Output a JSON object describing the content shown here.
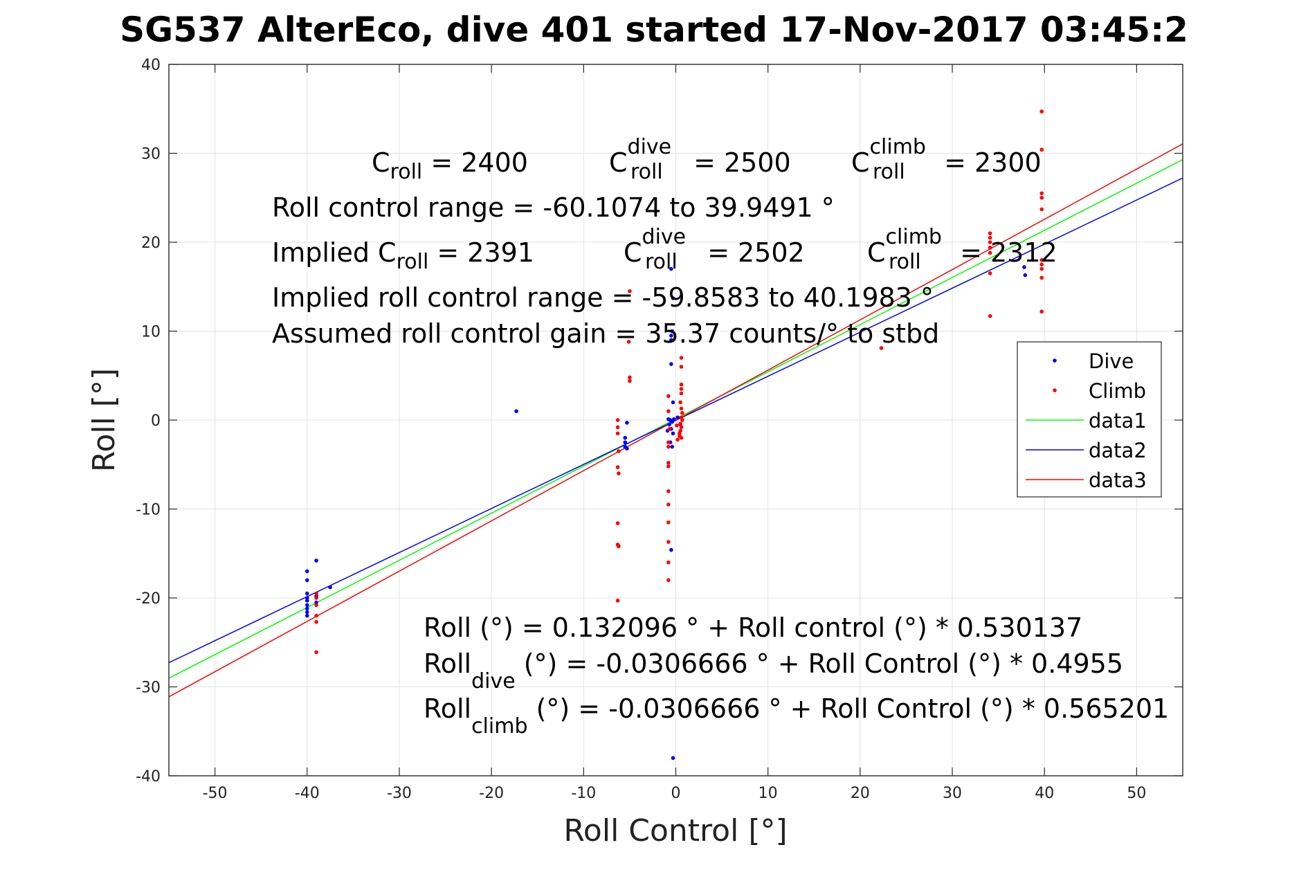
{
  "chart_data": {
    "type": "scatter",
    "title": "SG537 AlterEco, dive 401 started 17-Nov-2017 03:45:2",
    "xlabel": "Roll Control [°]",
    "ylabel": "Roll [°]",
    "xlim": [
      -55,
      55
    ],
    "ylim": [
      -40,
      40
    ],
    "xticks": [
      -50,
      -40,
      -30,
      -20,
      -10,
      0,
      10,
      20,
      30,
      40,
      50
    ],
    "yticks": [
      -40,
      -30,
      -20,
      -10,
      0,
      10,
      20,
      30,
      40
    ],
    "xtick_labels": [
      "-50",
      "-40",
      "-30",
      "-20",
      "-10",
      "0",
      "10",
      "20",
      "30",
      "40",
      "50"
    ],
    "ytick_labels": [
      "-40",
      "-30",
      "-20",
      "-10",
      "0",
      "10",
      "20",
      "30",
      "40"
    ],
    "grid": true,
    "legend_position": "right",
    "scatter_series": [
      {
        "name": "Dive",
        "color": "#0000ff",
        "points": [
          [
            -40,
            -17
          ],
          [
            -40,
            -18
          ],
          [
            -40,
            -19.5
          ],
          [
            -40,
            -20.3
          ],
          [
            -40,
            -20.8
          ],
          [
            -40,
            -21.2
          ],
          [
            -40,
            -21.6
          ],
          [
            -40,
            -22
          ],
          [
            -40,
            -20
          ],
          [
            -39,
            -15.8
          ],
          [
            -39,
            -19.8
          ],
          [
            -39,
            -20.5
          ],
          [
            -37.5,
            -18.8
          ],
          [
            -17.3,
            1
          ],
          [
            -5.3,
            -0.3
          ],
          [
            -5.5,
            -2
          ],
          [
            -5.5,
            -2.5
          ],
          [
            -5.5,
            -3
          ],
          [
            -5.3,
            -3.2
          ],
          [
            -0.5,
            17
          ],
          [
            -0.3,
            13.7
          ],
          [
            -0.4,
            10
          ],
          [
            -0.5,
            9.5
          ],
          [
            -0.5,
            9
          ],
          [
            -0.5,
            6.3
          ],
          [
            -0.3,
            2
          ],
          [
            -0.8,
            0.1
          ],
          [
            -0.6,
            0
          ],
          [
            -0.4,
            -0.2
          ],
          [
            -0.2,
            0.1
          ],
          [
            -0.7,
            -0.5
          ],
          [
            -0.5,
            -1
          ],
          [
            -0.9,
            -1.2
          ],
          [
            -0.3,
            -1.5
          ],
          [
            -0.6,
            -2.5
          ],
          [
            -0.4,
            -3
          ],
          [
            -0.5,
            -14.6
          ],
          [
            -0.3,
            -38
          ],
          [
            0.5,
            -0.5
          ],
          [
            0.2,
            0.3
          ],
          [
            37.8,
            17.2
          ],
          [
            37.9,
            16.3
          ]
        ]
      },
      {
        "name": "Climb",
        "color": "#ff0000",
        "points": [
          [
            -39,
            -19.5
          ],
          [
            -39,
            -20
          ],
          [
            -39,
            -20.8
          ],
          [
            -39,
            -22
          ],
          [
            -39,
            -22.7
          ],
          [
            -39,
            -26.1
          ],
          [
            -6.3,
            0
          ],
          [
            -6.3,
            -0.8
          ],
          [
            -6.3,
            -1.5
          ],
          [
            -6.2,
            -3.5
          ],
          [
            -6.3,
            -5.3
          ],
          [
            -6.2,
            -6
          ],
          [
            -6.3,
            -11.6
          ],
          [
            -6.3,
            -14
          ],
          [
            -6.2,
            -14.2
          ],
          [
            -6.3,
            -20.3
          ],
          [
            -5.1,
            8.8
          ],
          [
            -5,
            4.8
          ],
          [
            -5,
            4.4
          ],
          [
            -5,
            14.5
          ],
          [
            -0.8,
            2.7
          ],
          [
            -0.8,
            1
          ],
          [
            -0.7,
            -1
          ],
          [
            -0.8,
            -2.5
          ],
          [
            -0.8,
            -3
          ],
          [
            -0.8,
            -4.8
          ],
          [
            -0.8,
            -5.2
          ],
          [
            -0.8,
            -8
          ],
          [
            -0.8,
            -9.5
          ],
          [
            -0.8,
            -11.5
          ],
          [
            -0.8,
            -13.7
          ],
          [
            -0.8,
            -16
          ],
          [
            -0.8,
            -18
          ],
          [
            0.6,
            7
          ],
          [
            0.6,
            6
          ],
          [
            0.6,
            4
          ],
          [
            0.6,
            3.5
          ],
          [
            0.6,
            3
          ],
          [
            0.5,
            2
          ],
          [
            0.6,
            1.3
          ],
          [
            0.7,
            0.8
          ],
          [
            0.6,
            0.3
          ],
          [
            0.7,
            0
          ],
          [
            0.5,
            -0.4
          ],
          [
            0.6,
            -0.8
          ],
          [
            0.5,
            -1.2
          ],
          [
            0.4,
            -1.5
          ],
          [
            0.6,
            -2
          ],
          [
            0.2,
            -2.2
          ],
          [
            0.4,
            -1.8
          ],
          [
            0.1,
            -0.6
          ],
          [
            22.3,
            8.1
          ],
          [
            34.1,
            21
          ],
          [
            34.1,
            20.5
          ],
          [
            34.1,
            20
          ],
          [
            34.1,
            19.4
          ],
          [
            34.1,
            18.8
          ],
          [
            34.1,
            16.5
          ],
          [
            34.1,
            11.7
          ],
          [
            39.7,
            34.7
          ],
          [
            39.7,
            30.4
          ],
          [
            39.7,
            25.5
          ],
          [
            39.7,
            25
          ],
          [
            39.7,
            23.7
          ],
          [
            39.7,
            18
          ],
          [
            39.7,
            17.5
          ],
          [
            39.7,
            17
          ],
          [
            39.7,
            16
          ],
          [
            39.7,
            12.2
          ]
        ]
      }
    ],
    "line_series": [
      {
        "name": "data1",
        "color": "#00ff00",
        "intercept": 0.132096,
        "slope": 0.530137
      },
      {
        "name": "data2",
        "color": "#0000ff",
        "intercept": -0.0306666,
        "slope": 0.4955
      },
      {
        "name": "data3",
        "color": "#ff0000",
        "intercept": -0.0306666,
        "slope": 0.565201
      }
    ],
    "annotations": {
      "c_roll_lead": "C",
      "c_roll_sub": "roll",
      "c_roll_val": " = 2400",
      "c_dive_lead": "C",
      "c_dive_sup": "dive",
      "c_dive_sub": "roll",
      "c_dive_val": " = 2500",
      "c_climb_lead": "C",
      "c_climb_sup": "climb",
      "c_climb_sub": "roll",
      "c_climb_val": " = 2300",
      "range": "Roll control range = -60.1074 to 39.9491 °",
      "implied_lead": "Implied C",
      "implied_sub": "roll",
      "implied_val": " = 2391",
      "implied_dive_lead": "C",
      "implied_dive_sup": "dive",
      "implied_dive_sub": "roll",
      "implied_dive_val": " = 2502",
      "implied_climb_lead": "C",
      "implied_climb_sup": "climb",
      "implied_climb_sub": "roll",
      "implied_climb_val": " = 2312",
      "implied_range": "Implied roll control range = -59.8583 to 40.1983 °",
      "gain": "Assumed roll control gain = 35.37 counts/° to stbd",
      "eq1": "Roll (°) = 0.132096 ° + Roll control (°) * 0.530137",
      "eq2_lead": "Roll",
      "eq2_sub": "dive",
      "eq2_rest": " (°) = -0.0306666 ° + Roll Control (°) * 0.4955",
      "eq3_lead": "Roll",
      "eq3_sub": "climb",
      "eq3_rest": " (°) = -0.0306666 ° + Roll Control (°) * 0.565201"
    }
  }
}
